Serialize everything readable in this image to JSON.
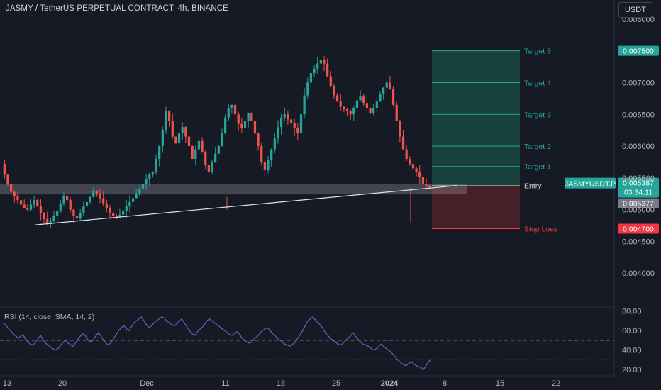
{
  "header": {
    "title": "JASMY / TetherUS PERPETUAL CONTRACT, 4h, BINANCE",
    "currency": "USDT"
  },
  "rsi": {
    "legend": "RSI (14, close, SMA, 14, 2)",
    "levels": [
      "80.00",
      "60.00",
      "40.00",
      "20.00"
    ],
    "values": [
      68,
      66,
      63,
      60,
      57,
      55,
      52,
      54,
      56,
      51,
      48,
      46,
      45,
      48,
      52,
      55,
      50,
      47,
      45,
      43,
      41,
      40,
      42,
      45,
      48,
      50,
      47,
      45,
      44,
      48,
      52,
      55,
      57,
      54,
      50,
      48,
      51,
      55,
      58,
      54,
      50,
      47,
      45,
      48,
      52,
      56,
      60,
      63,
      65,
      62,
      60,
      64,
      68,
      70,
      72,
      74,
      70,
      66,
      63,
      65,
      68,
      70,
      72,
      74,
      73,
      70,
      68,
      66,
      65,
      67,
      70,
      72,
      68,
      64,
      60,
      57,
      55,
      58,
      61,
      63,
      66,
      70,
      72,
      70,
      68,
      66,
      64,
      62,
      60,
      58,
      56,
      55,
      57,
      59,
      56,
      52,
      50,
      48,
      47,
      49,
      52,
      54,
      57,
      60,
      62,
      63,
      60,
      57,
      55,
      52,
      50,
      48,
      46,
      45,
      44,
      46,
      48,
      52,
      56,
      60,
      65,
      70,
      72,
      74,
      71,
      68,
      66,
      62,
      58,
      55,
      52,
      50,
      48,
      46,
      45,
      47,
      50,
      52,
      55,
      58,
      54,
      51,
      48,
      46,
      45,
      44,
      42,
      40,
      41,
      43,
      46,
      44,
      42,
      40,
      38,
      35,
      32,
      29,
      27,
      25,
      24,
      26,
      28,
      26,
      24,
      23,
      22,
      20,
      24,
      28,
      31
    ]
  },
  "chart_data": {
    "type": "candlestick",
    "symbol": "JASMYUSDT.P",
    "timeframe": "4h",
    "exchange": "BINANCE",
    "ylim": [
      0.0035,
      0.0083
    ],
    "y_ticks": [
      "0.008000",
      "0.007000",
      "0.006500",
      "0.006000",
      "0.005500",
      "0.005000",
      "0.004500",
      "0.004000"
    ],
    "x_ticks": [
      "13",
      "20",
      "Dec",
      "11",
      "18",
      "25",
      "2024",
      "8",
      "15",
      "22"
    ],
    "price_path": [
      0.00572,
      0.00555,
      0.0054,
      0.00528,
      0.00522,
      0.00515,
      0.00508,
      0.00503,
      0.005,
      0.00508,
      0.00515,
      0.00505,
      0.00495,
      0.00485,
      0.00478,
      0.00482,
      0.0049,
      0.00498,
      0.0051,
      0.00522,
      0.00515,
      0.005,
      0.0049,
      0.00486,
      0.00495,
      0.00505,
      0.00512,
      0.0052,
      0.0053,
      0.00525,
      0.00518,
      0.0051,
      0.00502,
      0.00495,
      0.0049,
      0.00488,
      0.00492,
      0.00498,
      0.00505,
      0.00512,
      0.00518,
      0.00525,
      0.00532,
      0.0054,
      0.00548,
      0.00555,
      0.0056,
      0.0058,
      0.006,
      0.00625,
      0.00655,
      0.0064,
      0.00615,
      0.00605,
      0.0062,
      0.0063,
      0.00615,
      0.006,
      0.0058,
      0.00595,
      0.00608,
      0.0059,
      0.0057,
      0.0056,
      0.00575,
      0.00588,
      0.006,
      0.0062,
      0.00645,
      0.0066,
      0.00665,
      0.0065,
      0.00635,
      0.00628,
      0.0064,
      0.00652,
      0.0064,
      0.0062,
      0.006,
      0.00575,
      0.00562,
      0.00578,
      0.00595,
      0.00612,
      0.0063,
      0.00645,
      0.0065,
      0.00642,
      0.00636,
      0.00628,
      0.0062,
      0.0065,
      0.0068,
      0.007,
      0.00715,
      0.00722,
      0.0073,
      0.00736,
      0.0073,
      0.0071,
      0.00695,
      0.0068,
      0.0067,
      0.00662,
      0.00658,
      0.00655,
      0.0065,
      0.0066,
      0.00672,
      0.00678,
      0.00668,
      0.0066,
      0.00652,
      0.0066,
      0.0067,
      0.00682,
      0.00692,
      0.007,
      0.0069,
      0.00665,
      0.0064,
      0.00615,
      0.00595,
      0.0058,
      0.00572,
      0.00565,
      0.0056,
      0.00552,
      0.0054,
      0.00538,
      0.00535
    ],
    "support_zone": [
      0.00524,
      0.0054
    ],
    "trendline": [
      {
        "x": "Nov 18",
        "y": 0.00476
      },
      {
        "x": "Jan 5",
        "y": 0.00538
      }
    ],
    "levels": [
      {
        "label": "Target 5",
        "price": 0.0075,
        "tag": "0.007500"
      },
      {
        "label": "Target 4",
        "price": 0.007
      },
      {
        "label": "Target 3",
        "price": 0.0065
      },
      {
        "label": "Target 2",
        "price": 0.006
      },
      {
        "label": "Target 1",
        "price": 0.00568
      },
      {
        "label": "Entry",
        "price": 0.00538
      },
      {
        "label": "Stop Loss",
        "price": 0.0047,
        "tag": "0.004700"
      }
    ],
    "price_tags": {
      "symbol_tag": "JASMYUSDT.P",
      "last_price": "0.005387",
      "countdown": "03:34:11",
      "bid": "0.005377"
    },
    "colors": {
      "up": "#26a69a",
      "down": "#ef5350",
      "target": "#26a69a",
      "stop": "#f23645",
      "rsi": "#7e57c2"
    }
  }
}
